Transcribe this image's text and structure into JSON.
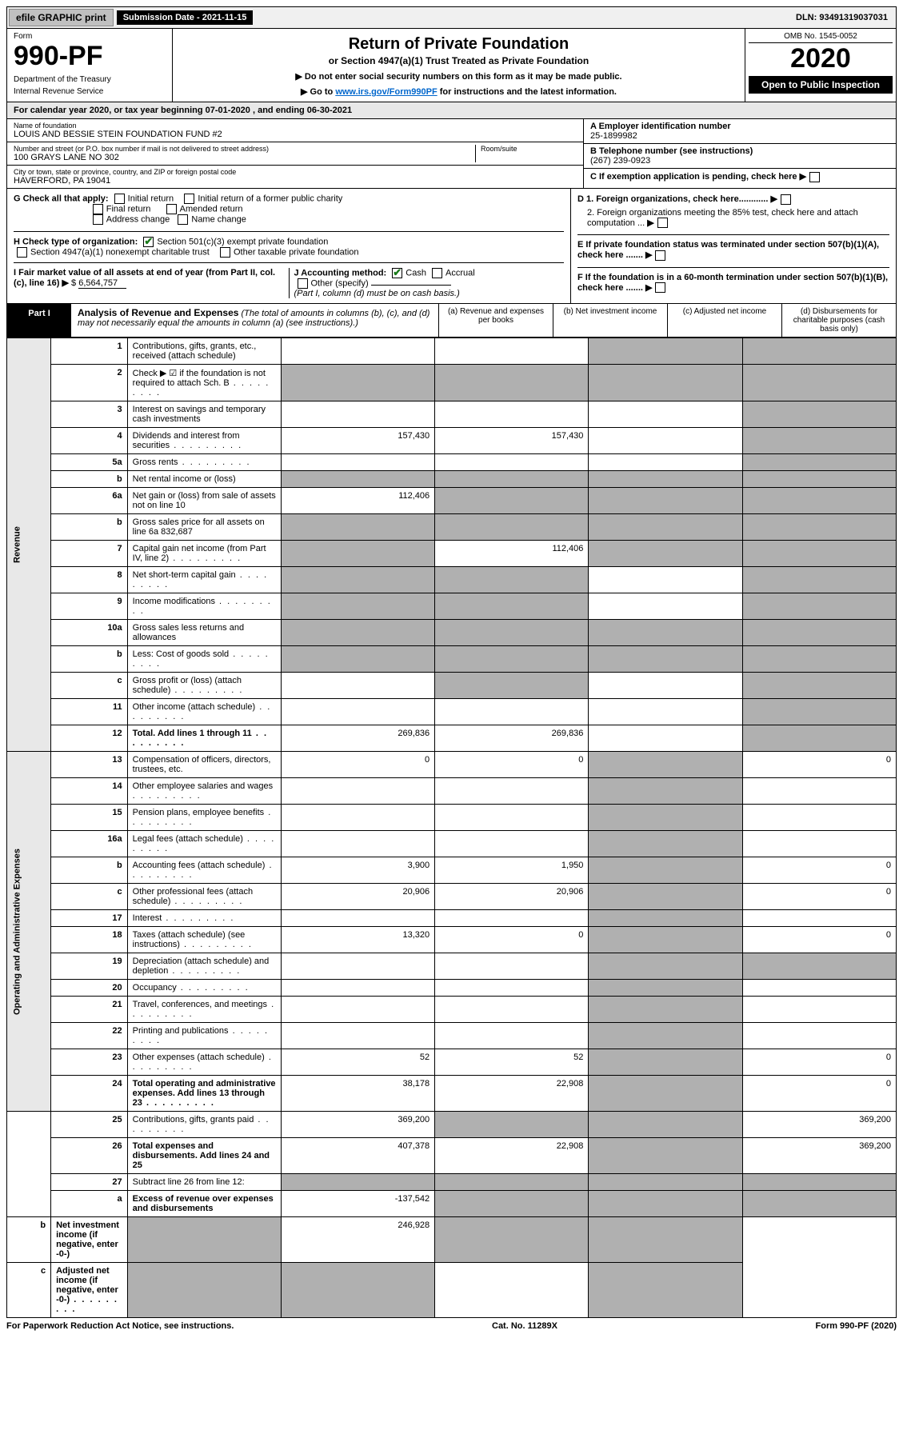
{
  "topbar": {
    "efile_label": "efile GRAPHIC print",
    "submission_label": "Submission Date - 2021-11-15",
    "dln": "DLN: 93491319037031"
  },
  "header": {
    "form_label": "Form",
    "form_number": "990-PF",
    "dept": "Department of the Treasury",
    "irs": "Internal Revenue Service",
    "title": "Return of Private Foundation",
    "subtitle": "or Section 4947(a)(1) Trust Treated as Private Foundation",
    "note1": "▶ Do not enter social security numbers on this form as it may be made public.",
    "note2_prefix": "▶ Go to ",
    "note2_link": "www.irs.gov/Form990PF",
    "note2_suffix": " for instructions and the latest information.",
    "omb": "OMB No. 1545-0052",
    "year": "2020",
    "inspect": "Open to Public Inspection"
  },
  "calyear": "For calendar year 2020, or tax year beginning 07-01-2020                    , and ending 06-30-2021",
  "foundation": {
    "name_label": "Name of foundation",
    "name": "LOUIS AND BESSIE STEIN FOUNDATION FUND #2",
    "addr_label": "Number and street (or P.O. box number if mail is not delivered to street address)",
    "addr": "100 GRAYS LANE NO 302",
    "room_label": "Room/suite",
    "city_label": "City or town, state or province, country, and ZIP or foreign postal code",
    "city": "HAVERFORD, PA  19041",
    "ein_label": "A Employer identification number",
    "ein": "25-1899982",
    "tel_label": "B Telephone number (see instructions)",
    "tel": "(267) 239-0923",
    "c_label": "C If exemption application is pending, check here"
  },
  "checks": {
    "g_label": "G Check all that apply:",
    "g_opts": [
      "Initial return",
      "Initial return of a former public charity",
      "Final return",
      "Amended return",
      "Address change",
      "Name change"
    ],
    "h_label": "H Check type of organization:",
    "h1": "Section 501(c)(3) exempt private foundation",
    "h2": "Section 4947(a)(1) nonexempt charitable trust",
    "h3": "Other taxable private foundation",
    "i_label": "I Fair market value of all assets at end of year (from Part II, col. (c), line 16)",
    "i_value": "6,564,757",
    "j_label": "J Accounting method:",
    "j_cash": "Cash",
    "j_accrual": "Accrual",
    "j_other": "Other (specify)",
    "j_note": "(Part I, column (d) must be on cash basis.)",
    "d1": "D 1. Foreign organizations, check here............",
    "d2": "2. Foreign organizations meeting the 85% test, check here and attach computation ...",
    "e": "E  If private foundation status was terminated under section 507(b)(1)(A), check here .......",
    "f": "F  If the foundation is in a 60-month termination under section 507(b)(1)(B), check here ......."
  },
  "part1": {
    "label": "Part I",
    "title": "Analysis of Revenue and Expenses",
    "title_note": "(The total of amounts in columns (b), (c), and (d) may not necessarily equal the amounts in column (a) (see instructions).)",
    "col_a": "(a)  Revenue and expenses per books",
    "col_b": "(b)  Net investment income",
    "col_c": "(c)  Adjusted net income",
    "col_d": "(d)  Disbursements for charitable purposes (cash basis only)"
  },
  "side": {
    "revenue": "Revenue",
    "opex": "Operating and Administrative Expenses"
  },
  "rows": [
    {
      "n": "1",
      "d": "Contributions, gifts, grants, etc., received (attach schedule)",
      "a": "",
      "b": "",
      "c": "s",
      "ds": "s"
    },
    {
      "n": "2",
      "d": "Check ▶ ☑ if the foundation is not required to attach Sch. B",
      "dots": true,
      "a": "s",
      "b": "s",
      "c": "s",
      "ds": "s"
    },
    {
      "n": "3",
      "d": "Interest on savings and temporary cash investments",
      "a": "",
      "b": "",
      "c": "",
      "ds": "s"
    },
    {
      "n": "4",
      "d": "Dividends and interest from securities",
      "dots": true,
      "a": "157,430",
      "b": "157,430",
      "c": "",
      "ds": "s"
    },
    {
      "n": "5a",
      "d": "Gross rents",
      "dots": true,
      "a": "",
      "b": "",
      "c": "",
      "ds": "s"
    },
    {
      "n": "b",
      "d": "Net rental income or (loss)",
      "a": "s",
      "b": "s",
      "c": "s",
      "ds": "s"
    },
    {
      "n": "6a",
      "d": "Net gain or (loss) from sale of assets not on line 10",
      "a": "112,406",
      "b": "s",
      "c": "s",
      "ds": "s"
    },
    {
      "n": "b",
      "d": "Gross sales price for all assets on line 6a           832,687",
      "a": "s",
      "b": "s",
      "c": "s",
      "ds": "s"
    },
    {
      "n": "7",
      "d": "Capital gain net income (from Part IV, line 2)",
      "dots": true,
      "a": "s",
      "b": "112,406",
      "c": "s",
      "ds": "s"
    },
    {
      "n": "8",
      "d": "Net short-term capital gain",
      "dots": true,
      "a": "s",
      "b": "s",
      "c": "",
      "ds": "s"
    },
    {
      "n": "9",
      "d": "Income modifications",
      "dots": true,
      "a": "s",
      "b": "s",
      "c": "",
      "ds": "s"
    },
    {
      "n": "10a",
      "d": "Gross sales less returns and allowances",
      "a": "s",
      "b": "s",
      "c": "s",
      "ds": "s"
    },
    {
      "n": "b",
      "d": "Less: Cost of goods sold",
      "dots": true,
      "a": "s",
      "b": "s",
      "c": "s",
      "ds": "s"
    },
    {
      "n": "c",
      "d": "Gross profit or (loss) (attach schedule)",
      "dots": true,
      "a": "",
      "b": "s",
      "c": "",
      "ds": "s"
    },
    {
      "n": "11",
      "d": "Other income (attach schedule)",
      "dots": true,
      "a": "",
      "b": "",
      "c": "",
      "ds": "s"
    },
    {
      "n": "12",
      "d": "Total. Add lines 1 through 11",
      "dots": true,
      "bold": true,
      "a": "269,836",
      "b": "269,836",
      "c": "",
      "ds": "s"
    },
    {
      "n": "13",
      "d": "Compensation of officers, directors, trustees, etc.",
      "a": "0",
      "b": "0",
      "c": "s",
      "ds": "0"
    },
    {
      "n": "14",
      "d": "Other employee salaries and wages",
      "dots": true,
      "a": "",
      "b": "",
      "c": "s",
      "ds": ""
    },
    {
      "n": "15",
      "d": "Pension plans, employee benefits",
      "dots": true,
      "a": "",
      "b": "",
      "c": "s",
      "ds": ""
    },
    {
      "n": "16a",
      "d": "Legal fees (attach schedule)",
      "dots": true,
      "a": "",
      "b": "",
      "c": "s",
      "ds": ""
    },
    {
      "n": "b",
      "d": "Accounting fees (attach schedule)",
      "dots": true,
      "a": "3,900",
      "b": "1,950",
      "c": "s",
      "ds": "0"
    },
    {
      "n": "c",
      "d": "Other professional fees (attach schedule)",
      "dots": true,
      "a": "20,906",
      "b": "20,906",
      "c": "s",
      "ds": "0"
    },
    {
      "n": "17",
      "d": "Interest",
      "dots": true,
      "a": "",
      "b": "",
      "c": "s",
      "ds": ""
    },
    {
      "n": "18",
      "d": "Taxes (attach schedule) (see instructions)",
      "dots": true,
      "a": "13,320",
      "b": "0",
      "c": "s",
      "ds": "0"
    },
    {
      "n": "19",
      "d": "Depreciation (attach schedule) and depletion",
      "dots": true,
      "a": "",
      "b": "",
      "c": "s",
      "ds": "s"
    },
    {
      "n": "20",
      "d": "Occupancy",
      "dots": true,
      "a": "",
      "b": "",
      "c": "s",
      "ds": ""
    },
    {
      "n": "21",
      "d": "Travel, conferences, and meetings",
      "dots": true,
      "a": "",
      "b": "",
      "c": "s",
      "ds": ""
    },
    {
      "n": "22",
      "d": "Printing and publications",
      "dots": true,
      "a": "",
      "b": "",
      "c": "s",
      "ds": ""
    },
    {
      "n": "23",
      "d": "Other expenses (attach schedule)",
      "dots": true,
      "a": "52",
      "b": "52",
      "c": "s",
      "ds": "0"
    },
    {
      "n": "24",
      "d": "Total operating and administrative expenses. Add lines 13 through 23",
      "dots": true,
      "bold": true,
      "a": "38,178",
      "b": "22,908",
      "c": "s",
      "ds": "0"
    },
    {
      "n": "25",
      "d": "Contributions, gifts, grants paid",
      "dots": true,
      "a": "369,200",
      "b": "s",
      "c": "s",
      "ds": "369,200"
    },
    {
      "n": "26",
      "d": "Total expenses and disbursements. Add lines 24 and 25",
      "bold": true,
      "a": "407,378",
      "b": "22,908",
      "c": "s",
      "ds": "369,200"
    },
    {
      "n": "27",
      "d": "Subtract line 26 from line 12:",
      "a": "s",
      "b": "s",
      "c": "s",
      "ds": "s"
    },
    {
      "n": "a",
      "d": "Excess of revenue over expenses and disbursements",
      "bold": true,
      "a": "-137,542",
      "b": "s",
      "c": "s",
      "ds": "s"
    },
    {
      "n": "b",
      "d": "Net investment income (if negative, enter -0-)",
      "bold": true,
      "a": "s",
      "b": "246,928",
      "c": "s",
      "ds": "s"
    },
    {
      "n": "c",
      "d": "Adjusted net income (if negative, enter -0-)",
      "dots": true,
      "bold": true,
      "a": "s",
      "b": "s",
      "c": "",
      "ds": "s"
    }
  ],
  "footer": {
    "left": "For Paperwork Reduction Act Notice, see instructions.",
    "mid": "Cat. No. 11289X",
    "right": "Form 990-PF (2020)"
  }
}
